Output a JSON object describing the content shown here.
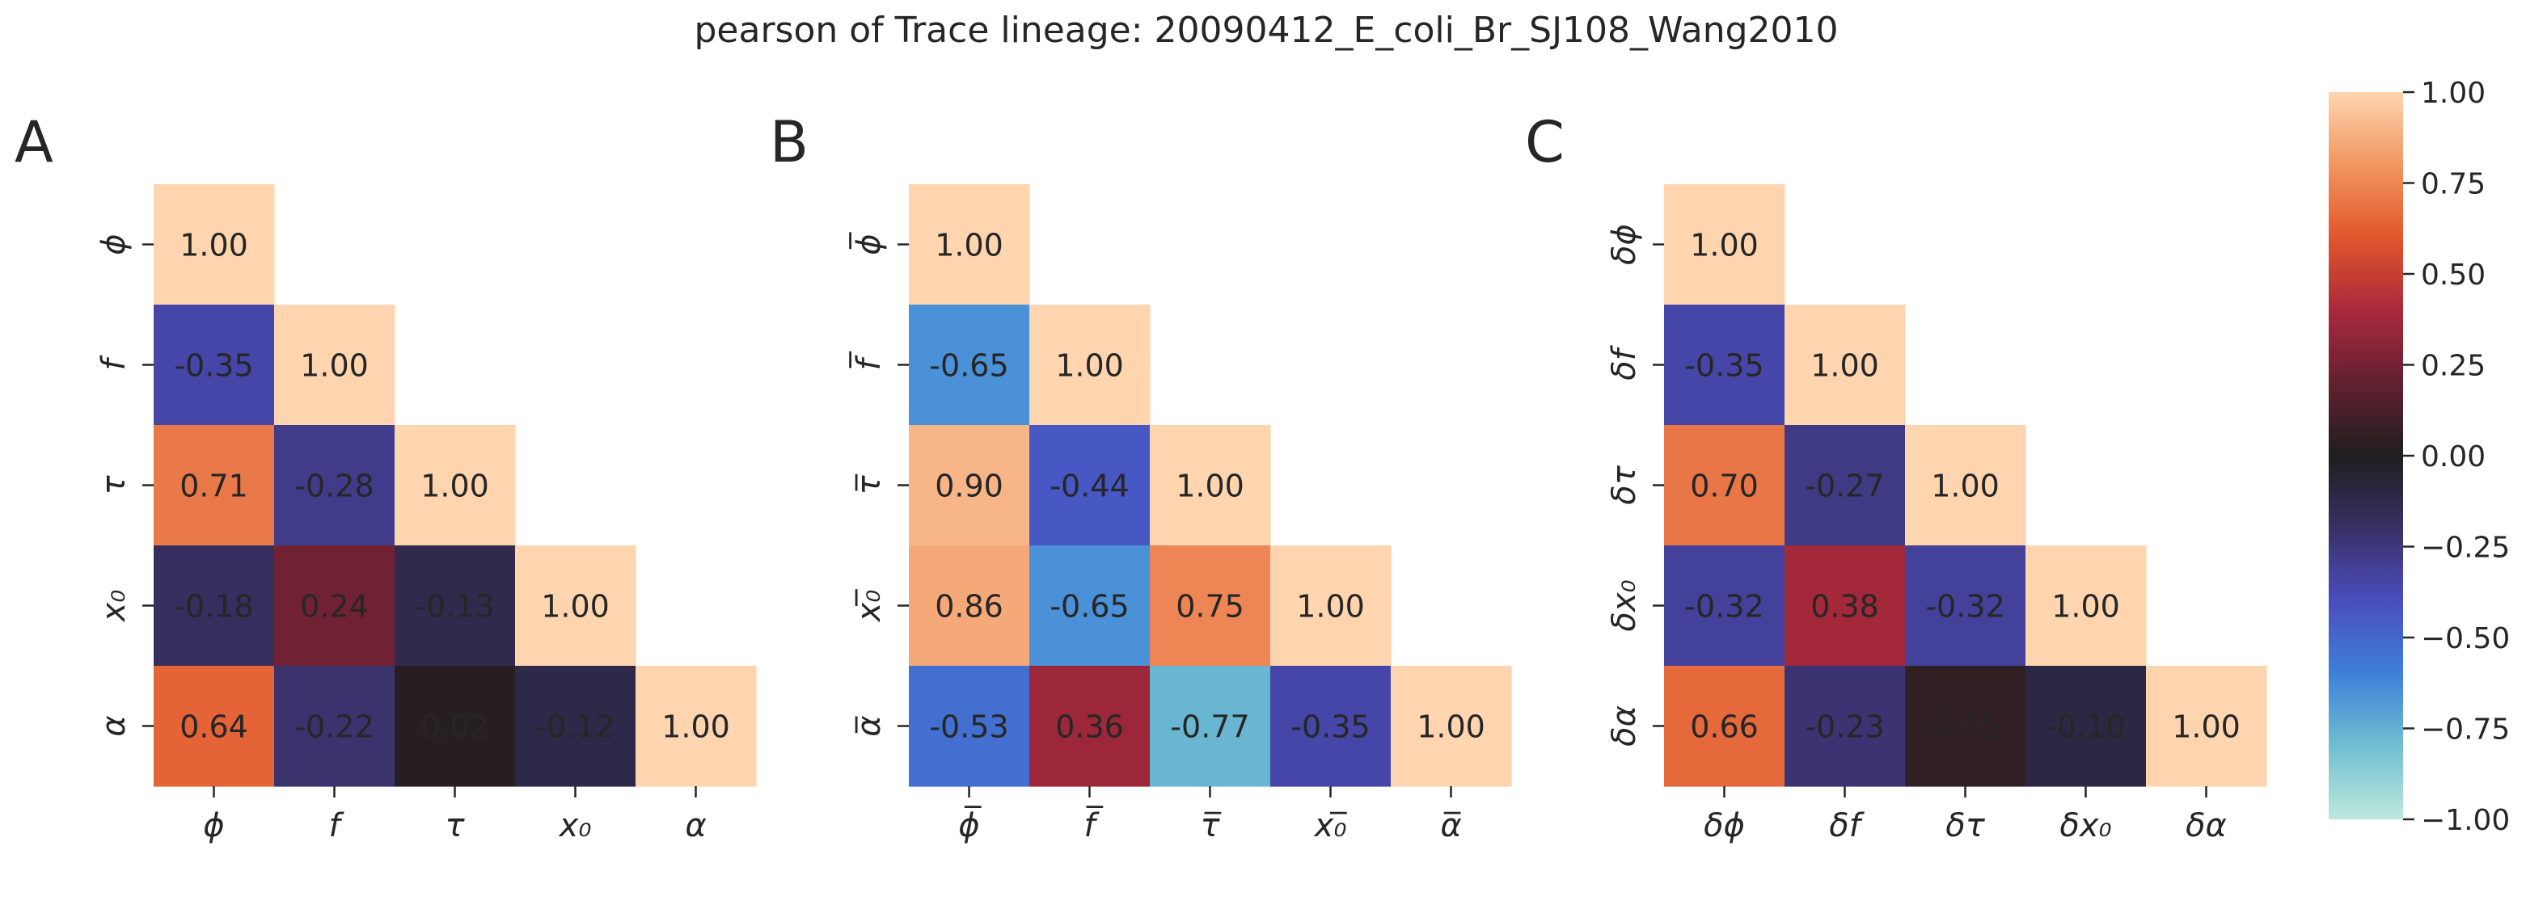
{
  "title": "pearson of Trace lineage: 20090412_E_coli_Br_SJ108_Wang2010",
  "chart_data": {
    "type": "heatmap",
    "title": "pearson of Trace lineage: 20090412_E_coli_Br_SJ108_Wang2010",
    "vmin": -1.0,
    "vmax": 1.0,
    "colormap": "icefire",
    "mask": "upper triangle (lower-triangular including diagonal shown)",
    "colorbar": {
      "ticks": [
        "1.00",
        "0.75",
        "0.50",
        "0.25",
        "0.00",
        "−0.25",
        "−0.50",
        "−0.75",
        "−1.00"
      ]
    },
    "panels": [
      {
        "label": "A",
        "labels": [
          "ϕ",
          "f",
          "τ",
          "x₀",
          "α"
        ],
        "values": [
          [
            1.0,
            null,
            null,
            null,
            null
          ],
          [
            -0.35,
            1.0,
            null,
            null,
            null
          ],
          [
            0.71,
            -0.28,
            1.0,
            null,
            null
          ],
          [
            -0.18,
            0.24,
            -0.13,
            1.0,
            null
          ],
          [
            0.64,
            -0.22,
            0.02,
            -0.12,
            1.0
          ]
        ]
      },
      {
        "label": "B",
        "labels": [
          "ϕ̅",
          "f̅",
          "τ̅",
          "x₀̅",
          "α̅"
        ],
        "values": [
          [
            1.0,
            null,
            null,
            null,
            null
          ],
          [
            -0.65,
            1.0,
            null,
            null,
            null
          ],
          [
            0.9,
            -0.44,
            1.0,
            null,
            null
          ],
          [
            0.86,
            -0.65,
            0.75,
            1.0,
            null
          ],
          [
            -0.53,
            0.36,
            -0.77,
            -0.35,
            1.0
          ]
        ]
      },
      {
        "label": "C",
        "labels": [
          "δϕ",
          "δf",
          "δτ",
          "δx₀",
          "δα"
        ],
        "values": [
          [
            1.0,
            null,
            null,
            null,
            null
          ],
          [
            -0.35,
            1.0,
            null,
            null,
            null
          ],
          [
            0.7,
            -0.27,
            1.0,
            null,
            null
          ],
          [
            -0.32,
            0.38,
            -0.32,
            1.0,
            null
          ],
          [
            0.66,
            -0.23,
            0.05,
            -0.1,
            1.0
          ]
        ]
      }
    ]
  }
}
